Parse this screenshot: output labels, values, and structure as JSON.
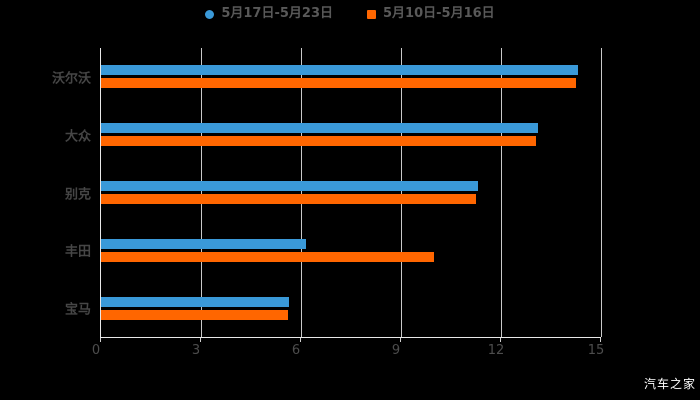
{
  "colors": {
    "background": "#000000",
    "series_blue": "#3a99d8",
    "series_orange": "#ff6600",
    "grid_line": "#c9c9c9",
    "axis_line": "#e8e8e8",
    "legend_text": "#595959",
    "category_text": "#464646",
    "tick_text": "#4d4d4d",
    "watermark_text": "#ffffff"
  },
  "legend": {
    "items": [
      {
        "label": "5月17日-5月23日",
        "color": "#3a99d8",
        "shape": "circle"
      },
      {
        "label": "5月10日-5月16日",
        "color": "#ff6600",
        "shape": "square"
      }
    ]
  },
  "watermark": "汽车之家",
  "chart_data": {
    "type": "bar",
    "orientation": "horizontal",
    "title": "",
    "xlabel": "",
    "ylabel": "",
    "categories": [
      "沃尔沃",
      "大众",
      "别克",
      "丰田",
      "宝马"
    ],
    "series": [
      {
        "name": "5月17日-5月23日",
        "color": "#3a99d8",
        "values": [
          14.3,
          13.1,
          11.3,
          6.15,
          5.65
        ]
      },
      {
        "name": "5月10日-5月16日",
        "color": "#ff6600",
        "values": [
          14.25,
          13.05,
          11.25,
          10.0,
          5.6
        ]
      }
    ],
    "xlim": [
      0,
      15
    ],
    "xticks": [
      "0",
      "3",
      "6",
      "9",
      "12",
      "15"
    ],
    "grid": true,
    "legend_position": "top-center"
  }
}
